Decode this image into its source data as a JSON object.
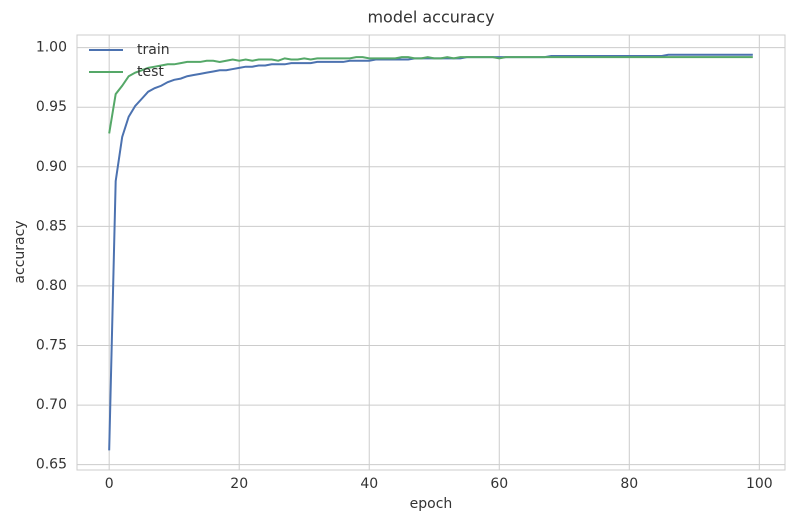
{
  "chart_data": {
    "type": "line",
    "title": "model accuracy",
    "x_label": "epoch",
    "y_label": "accuracy",
    "x": [
      0,
      1,
      2,
      3,
      4,
      5,
      6,
      7,
      8,
      9,
      10,
      11,
      12,
      13,
      14,
      15,
      16,
      17,
      18,
      19,
      20,
      21,
      22,
      23,
      24,
      25,
      26,
      27,
      28,
      29,
      30,
      31,
      32,
      33,
      34,
      35,
      36,
      37,
      38,
      39,
      40,
      41,
      42,
      43,
      44,
      45,
      46,
      47,
      48,
      49,
      50,
      51,
      52,
      53,
      54,
      55,
      56,
      57,
      58,
      59,
      60,
      61,
      62,
      63,
      64,
      65,
      66,
      67,
      68,
      69,
      70,
      71,
      72,
      73,
      74,
      75,
      76,
      77,
      78,
      79,
      80,
      81,
      82,
      83,
      84,
      85,
      86,
      87,
      88,
      89,
      90,
      91,
      92,
      93,
      94,
      95,
      96,
      97,
      98,
      99
    ],
    "series": [
      {
        "name": "train",
        "color": "#4c72b0",
        "values": [
          0.662,
          0.888,
          0.925,
          0.942,
          0.951,
          0.957,
          0.963,
          0.966,
          0.968,
          0.971,
          0.973,
          0.974,
          0.976,
          0.977,
          0.978,
          0.979,
          0.98,
          0.981,
          0.981,
          0.982,
          0.983,
          0.984,
          0.984,
          0.985,
          0.985,
          0.986,
          0.986,
          0.986,
          0.987,
          0.987,
          0.987,
          0.987,
          0.988,
          0.988,
          0.988,
          0.988,
          0.988,
          0.989,
          0.989,
          0.989,
          0.989,
          0.99,
          0.99,
          0.99,
          0.99,
          0.99,
          0.99,
          0.991,
          0.991,
          0.991,
          0.991,
          0.991,
          0.991,
          0.991,
          0.991,
          0.992,
          0.992,
          0.992,
          0.992,
          0.992,
          0.992,
          0.992,
          0.992,
          0.992,
          0.992,
          0.992,
          0.992,
          0.992,
          0.993,
          0.993,
          0.993,
          0.993,
          0.993,
          0.993,
          0.993,
          0.993,
          0.993,
          0.993,
          0.993,
          0.993,
          0.993,
          0.993,
          0.993,
          0.993,
          0.993,
          0.993,
          0.994,
          0.994,
          0.994,
          0.994,
          0.994,
          0.994,
          0.994,
          0.994,
          0.994,
          0.994,
          0.994,
          0.994,
          0.994,
          0.994
        ]
      },
      {
        "name": "test",
        "color": "#55a868",
        "values": [
          0.928,
          0.961,
          0.968,
          0.976,
          0.979,
          0.981,
          0.983,
          0.984,
          0.985,
          0.986,
          0.986,
          0.987,
          0.988,
          0.988,
          0.988,
          0.989,
          0.989,
          0.988,
          0.989,
          0.99,
          0.989,
          0.99,
          0.989,
          0.99,
          0.99,
          0.99,
          0.989,
          0.991,
          0.99,
          0.99,
          0.991,
          0.99,
          0.991,
          0.991,
          0.991,
          0.991,
          0.991,
          0.991,
          0.992,
          0.992,
          0.991,
          0.991,
          0.991,
          0.991,
          0.991,
          0.992,
          0.992,
          0.991,
          0.991,
          0.992,
          0.991,
          0.991,
          0.992,
          0.991,
          0.992,
          0.992,
          0.992,
          0.992,
          0.992,
          0.992,
          0.991,
          0.992,
          0.992,
          0.992,
          0.992,
          0.992,
          0.992,
          0.992,
          0.992,
          0.992,
          0.992,
          0.992,
          0.992,
          0.992,
          0.992,
          0.992,
          0.992,
          0.992,
          0.992,
          0.992,
          0.992,
          0.992,
          0.992,
          0.992,
          0.992,
          0.992,
          0.992,
          0.992,
          0.992,
          0.992,
          0.992,
          0.992,
          0.992,
          0.992,
          0.992,
          0.992,
          0.992,
          0.992,
          0.992,
          0.992
        ]
      }
    ],
    "xlim": [
      -4.95,
      103.95
    ],
    "ylim": [
      0.6455,
      1.0106
    ],
    "xticks": [
      0,
      20,
      40,
      60,
      80,
      100
    ],
    "yticks": [
      0.65,
      {
        "value": 0.7,
        "label": "0.70"
      },
      0.75,
      {
        "value": 0.8,
        "label": "0.80"
      },
      0.85,
      {
        "value": 0.9,
        "label": "0.90"
      },
      0.95,
      {
        "value": 1,
        "label": "1.00"
      }
    ],
    "grid": true,
    "legend": "upper left"
  }
}
